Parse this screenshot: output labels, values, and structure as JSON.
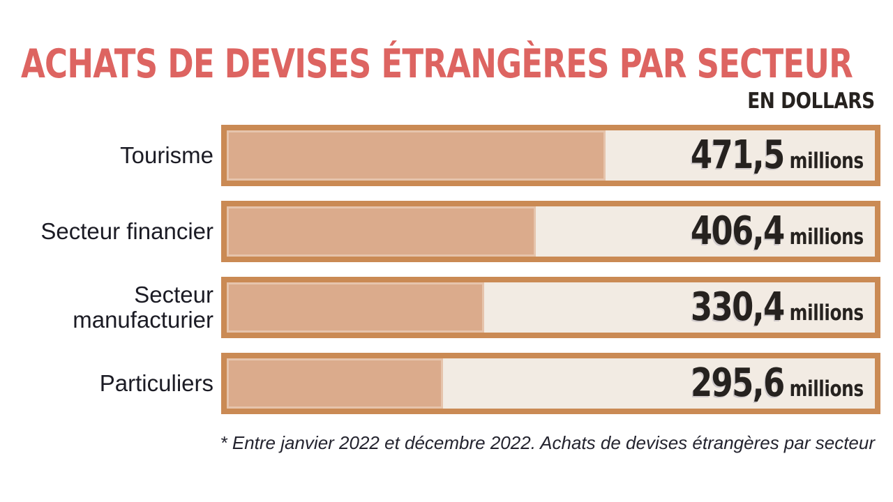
{
  "header": {
    "title": "ACHATS DE DEVISES ÉTRANGÈRES PAR SECTEUR",
    "subtitle": "EN DOLLARS"
  },
  "footnote": "* Entre janvier 2022 et décembre 2022. Achats de devises étrangères par secteur",
  "colors": {
    "title_red": "#DD6461",
    "bar_border": "#CA8A54",
    "bar_fill": "#DBAB8C",
    "bar_track": "#F2EBE3",
    "text_dark": "#26221F",
    "label_dark": "#1B1B24"
  },
  "chart_data": {
    "type": "bar",
    "orientation": "horizontal",
    "title": "ACHATS DE DEVISES ÉTRANGÈRES PAR SECTEUR",
    "subtitle": "EN DOLLARS",
    "unit_label": "millions",
    "currency": "dollars",
    "categories": [
      "Tourisme",
      "Secteur financier",
      "Secteur manufacturier",
      "Particuliers"
    ],
    "values": [
      471.5,
      406.4,
      330.4,
      295.6
    ],
    "value_labels": [
      "471,5",
      "406,4",
      "330,4",
      "295,6"
    ],
    "footnote": "* Entre janvier 2022 et décembre 2022. Achats de devises étrangères par secteur",
    "fill_percents": [
      58.5,
      47.7,
      39.7,
      33.4
    ],
    "xlim": [
      0,
      800
    ],
    "grid": false,
    "legend_position": "none"
  }
}
